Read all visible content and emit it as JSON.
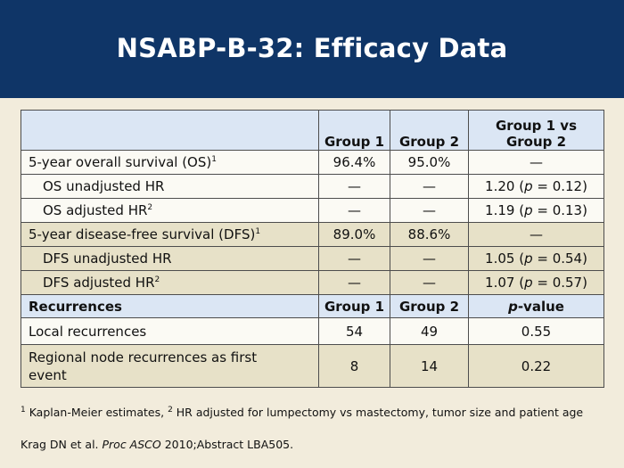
{
  "title": "NSABP-B-32: Efficacy Data",
  "header": {
    "group1": "Group 1",
    "group2": "Group 2",
    "compare": "Group 1 vs Group 2"
  },
  "os": {
    "label": "5-year overall survival (OS)",
    "sup": "1",
    "g1": "96.4%",
    "g2": "95.0%",
    "cmp": "—",
    "unadj_label": "OS unadjusted HR",
    "unadj_g1": "—",
    "unadj_g2": "—",
    "unadj_cmp": "1.20 (",
    "unadj_p": "p",
    "unadj_tail": " = 0.12)",
    "adj_label": "OS adjusted HR",
    "adj_sup": "2",
    "adj_g1": "—",
    "adj_g2": "—",
    "adj_cmp": "1.19 (",
    "adj_p": "p",
    "adj_tail": " = 0.13)"
  },
  "dfs": {
    "label": "5-year disease-free survival (DFS)",
    "sup": "1",
    "g1": "89.0%",
    "g2": "88.6%",
    "cmp": "—",
    "unadj_label": "DFS unadjusted HR",
    "unadj_g1": "—",
    "unadj_g2": "—",
    "unadj_cmp": "1.05 (",
    "unadj_p": "p",
    "unadj_tail": " = 0.54)",
    "adj_label": "DFS adjusted HR",
    "adj_sup": "2",
    "adj_g1": "—",
    "adj_g2": "—",
    "adj_cmp": "1.07 (",
    "adj_p": "p",
    "adj_tail": " = 0.57)"
  },
  "recurrences": {
    "label": "Recurrences",
    "group1": "Group 1",
    "group2": "Group 2",
    "pvalue_italic": "p",
    "pvalue_rest": "-value",
    "local_label": "Local recurrences",
    "local_g1": "54",
    "local_g2": "49",
    "local_p": "0.55",
    "regional_label": "Regional node recurrences as first event",
    "regional_g1": "8",
    "regional_g2": "14",
    "regional_p": "0.22"
  },
  "footnote": {
    "sup1": "1",
    "text1": " Kaplan-Meier estimates, ",
    "sup2": "2",
    "text2": " HR adjusted for lumpectomy vs mastectomy, tumor size and patient age"
  },
  "source": {
    "prefix": "Krag DN et al. ",
    "journal": "Proc ASCO",
    "suffix": " 2010;Abstract LBA505."
  }
}
